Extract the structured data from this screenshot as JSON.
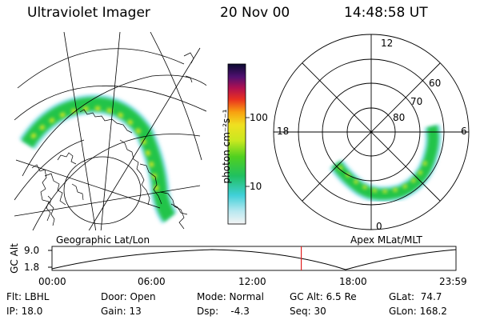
{
  "header": {
    "title": "Ultraviolet Imager",
    "date": "20 Nov 00",
    "time": "14:48:58 UT"
  },
  "colorbar": {
    "unit_label": "photon cm⁻²s⁻¹",
    "ticks": [
      "100",
      "10"
    ]
  },
  "polar": {
    "mlt_labels": [
      "12",
      "18",
      "6",
      "0"
    ],
    "lat_labels": [
      "60",
      "70",
      "80"
    ]
  },
  "panels": {
    "left_caption": "Geographic Lat/Lon",
    "right_caption": "Apex MLat/MLT"
  },
  "timeline": {
    "ylabel": "GC Alt",
    "ytick_high": "9.0",
    "ytick_low": "1.8",
    "xticks": [
      "00:00",
      "06:00",
      "12:00",
      "18:00",
      "23:59"
    ],
    "current_time_fraction": 0.617
  },
  "status": {
    "filter": "Flt: LBHL",
    "ip": "IP: 18.0",
    "door": "Door: Open",
    "gain": "Gain: 13",
    "mode": "Mode: Normal",
    "dsp": "Dsp:    -4.3",
    "gc_alt": "GC Alt: 6.5 Re",
    "seq": "Seq: 30",
    "glat": "GLat:  74.7",
    "glon": "GLon: 168.2"
  },
  "colors": {
    "aurora_green": "#22c44a",
    "aurora_yellow": "#d8e820",
    "aurora_cyan": "#30c8d8",
    "marker_red": "#e02020"
  }
}
